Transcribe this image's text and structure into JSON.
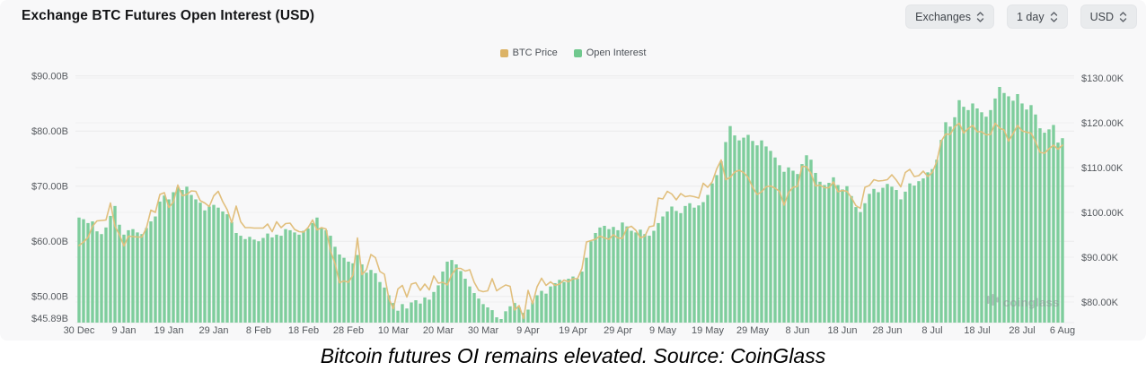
{
  "header": {
    "title": "Exchange BTC Futures Open Interest (USD)",
    "controls": [
      {
        "label": "Exchanges"
      },
      {
        "label": "1 day"
      },
      {
        "label": "USD"
      }
    ]
  },
  "legend": [
    {
      "label": "BTC Price",
      "color": "#dcb366"
    },
    {
      "label": "Open Interest",
      "color": "#70c88e"
    }
  ],
  "watermark": "coinglass",
  "caption": "Bitcoin futures OI remains elevated. Source: CoinGlass",
  "colors": {
    "bar": "#7ecd9c",
    "line": "#e1bf7d",
    "card_bg": "#f8f8f9",
    "axis_text": "#55595e",
    "grid_left": "#ebebec",
    "grid_right": "#f0f0f1"
  },
  "chart_data": {
    "type": "bar",
    "title": "Exchange BTC Futures Open Interest (USD)",
    "x_start": "30 Dec",
    "x_end": "6 Aug",
    "n_points": 220,
    "x_tick_labels": [
      {
        "label": "30 Dec",
        "day": 0
      },
      {
        "label": "9 Jan",
        "day": 10
      },
      {
        "label": "19 Jan",
        "day": 20
      },
      {
        "label": "29 Jan",
        "day": 30
      },
      {
        "label": "8 Feb",
        "day": 40
      },
      {
        "label": "18 Feb",
        "day": 50
      },
      {
        "label": "28 Feb",
        "day": 60
      },
      {
        "label": "10 Mar",
        "day": 70
      },
      {
        "label": "20 Mar",
        "day": 80
      },
      {
        "label": "30 Mar",
        "day": 90
      },
      {
        "label": "9 Apr",
        "day": 100
      },
      {
        "label": "19 Apr",
        "day": 110
      },
      {
        "label": "29 Apr",
        "day": 120
      },
      {
        "label": "9 May",
        "day": 130
      },
      {
        "label": "19 May",
        "day": 140
      },
      {
        "label": "29 May",
        "day": 150
      },
      {
        "label": "8 Jun",
        "day": 160
      },
      {
        "label": "18 Jun",
        "day": 170
      },
      {
        "label": "28 Jun",
        "day": 180
      },
      {
        "label": "8 Jul",
        "day": 190
      },
      {
        "label": "18 Jul",
        "day": 200
      },
      {
        "label": "28 Jul",
        "day": 210
      },
      {
        "label": "6 Aug",
        "day": 219
      }
    ],
    "left_axis": {
      "unit": "USD billions",
      "min": 45.89,
      "grid_values": [
        90,
        80,
        70,
        60,
        50
      ],
      "ticks": [
        {
          "label": "$90.00B",
          "value": 90
        },
        {
          "label": "$80.00B",
          "value": 80
        },
        {
          "label": "$70.00B",
          "value": 70
        },
        {
          "label": "$60.00B",
          "value": 60
        },
        {
          "label": "$50.00B",
          "value": 50
        },
        {
          "label": "$45.89B",
          "value": 45.89
        }
      ]
    },
    "right_axis": {
      "unit": "USD thousands",
      "ticks": [
        {
          "label": "$130.00K",
          "value": 130
        },
        {
          "label": "$120.00K",
          "value": 120
        },
        {
          "label": "$110.00K",
          "value": 110
        },
        {
          "label": "$100.00K",
          "value": 100
        },
        {
          "label": "$90.00K",
          "value": 90
        },
        {
          "label": "$80.00K",
          "value": 80
        }
      ]
    },
    "series": [
      {
        "name": "Open Interest",
        "type": "bar",
        "axis": "left",
        "color": "#7ecd9c",
        "values": [
          64.3,
          64.0,
          63.3,
          63.6,
          61.8,
          61.3,
          62.5,
          64.6,
          66.4,
          63.0,
          61.2,
          62.0,
          62.2,
          61.6,
          61.3,
          62.4,
          63.6,
          64.5,
          67.2,
          68.3,
          67.6,
          68.9,
          69.8,
          69.3,
          69.9,
          68.4,
          67.6,
          67.0,
          65.6,
          66.3,
          66.6,
          66.1,
          65.4,
          64.9,
          63.5,
          61.5,
          61.0,
          60.4,
          60.8,
          60.3,
          60.0,
          60.6,
          61.4,
          60.7,
          61.2,
          61.0,
          62.2,
          62.0,
          61.6,
          61.2,
          61.9,
          62.3,
          63.3,
          64.3,
          62.4,
          62.0,
          61.0,
          59.0,
          57.6,
          57.0,
          56.3,
          56.0,
          57.5,
          55.8,
          54.3,
          54.8,
          54.2,
          52.6,
          51.6,
          50.2,
          48.8,
          47.4,
          48.6,
          47.8,
          48.9,
          49.3,
          48.7,
          49.8,
          49.4,
          50.8,
          52.0,
          54.5,
          56.3,
          56.6,
          55.8,
          54.6,
          53.2,
          51.8,
          50.6,
          49.6,
          48.6,
          48.0,
          47.5,
          46.2,
          45.89,
          47.3,
          48.2,
          48.8,
          48.0,
          47.0,
          47.6,
          48.9,
          50.2,
          51.0,
          50.5,
          51.8,
          52.4,
          53.0,
          52.6,
          53.2,
          53.6,
          53.2,
          54.5,
          57.0,
          60.0,
          61.5,
          62.5,
          62.8,
          62.2,
          62.6,
          62.0,
          63.4,
          62.7,
          61.9,
          61.6,
          62.1,
          61.3,
          61.0,
          61.9,
          63.3,
          64.5,
          65.4,
          66.3,
          65.5,
          65.1,
          66.4,
          66.9,
          66.1,
          66.5,
          67.1,
          68.4,
          70.5,
          72.0,
          74.5,
          78.0,
          80.9,
          79.2,
          78.3,
          78.8,
          79.3,
          78.2,
          77.4,
          78.3,
          77.2,
          76.4,
          75.2,
          73.8,
          72.6,
          73.4,
          72.8,
          72.2,
          74.0,
          75.6,
          74.8,
          72.4,
          70.8,
          70.2,
          70.6,
          71.6,
          70.2,
          69.4,
          70.0,
          68.2,
          66.2,
          65.3,
          66.9,
          68.6,
          69.5,
          68.9,
          69.7,
          70.4,
          69.9,
          69.3,
          67.6,
          69.0,
          70.5,
          70.1,
          70.9,
          71.4,
          72.5,
          73.1,
          74.8,
          78.4,
          81.6,
          80.8,
          82.5,
          85.6,
          84.4,
          83.8,
          85.0,
          84.1,
          83.4,
          82.6,
          83.8,
          85.9,
          88.0,
          86.9,
          86.3,
          85.5,
          86.7,
          85.0,
          83.9,
          84.7,
          83.0,
          80.5,
          79.7,
          80.3,
          81.1,
          77.9,
          78.7
        ]
      },
      {
        "name": "BTC Price",
        "type": "line",
        "axis": "right",
        "color": "#e1bf7d",
        "values": [
          92.6,
          93.4,
          94.4,
          96.9,
          98.1,
          98.2,
          98.3,
          102.1,
          96.9,
          95.0,
          92.5,
          94.7,
          94.6,
          94.5,
          94.5,
          96.5,
          100.5,
          100.0,
          104.0,
          104.4,
          101.1,
          102.3,
          106.1,
          103.7,
          104.0,
          104.8,
          104.7,
          102.6,
          102.1,
          101.3,
          103.7,
          104.7,
          102.4,
          100.6,
          97.7,
          101.4,
          97.9,
          96.6,
          96.6,
          96.5,
          96.5,
          96.5,
          97.4,
          95.7,
          97.9,
          96.6,
          97.5,
          97.6,
          96.2,
          95.7,
          95.6,
          96.6,
          98.3,
          96.1,
          96.6,
          96.3,
          91.4,
          88.6,
          84.3,
          84.7,
          84.4,
          86.0,
          94.3,
          86.1,
          87.2,
          90.6,
          89.9,
          86.8,
          86.2,
          80.7,
          78.5,
          82.9,
          83.7,
          81.1,
          84.0,
          84.3,
          82.6,
          84.0,
          82.7,
          85.8,
          84.2,
          84.4,
          83.8,
          86.1,
          87.5,
          87.5,
          86.9,
          87.2,
          84.4,
          82.6,
          82.3,
          82.5,
          85.2,
          82.5,
          83.2,
          83.8,
          83.5,
          78.2,
          79.2,
          76.3,
          82.6,
          79.6,
          83.4,
          85.3,
          83.7,
          84.5,
          83.7,
          84.0,
          84.9,
          84.5,
          85.2,
          85.2,
          87.5,
          93.4,
          93.7,
          94.0,
          94.7,
          94.3,
          94.0,
          95.0,
          94.3,
          94.2,
          96.5,
          96.9,
          96.0,
          94.3,
          94.7,
          96.8,
          97.0,
          103.2,
          103.0,
          104.7,
          104.1,
          102.8,
          104.2,
          103.5,
          103.7,
          103.5,
          103.2,
          106.5,
          105.6,
          106.8,
          109.7,
          111.7,
          107.3,
          107.8,
          109.0,
          109.4,
          108.9,
          107.8,
          105.6,
          104.0,
          104.6,
          105.7,
          105.9,
          105.4,
          104.7,
          101.6,
          104.4,
          105.6,
          105.8,
          110.3,
          110.2,
          108.7,
          105.9,
          106.1,
          105.5,
          105.5,
          106.8,
          104.6,
          104.9,
          104.7,
          103.3,
          101.5,
          100.9,
          105.6,
          106.0,
          107.3,
          107.0,
          107.1,
          107.3,
          108.4,
          107.2,
          105.7,
          108.9,
          109.6,
          108.0,
          108.2,
          109.2,
          108.0,
          108.9,
          111.3,
          115.9,
          117.5,
          117.4,
          119.1,
          119.9,
          117.7,
          118.7,
          119.4,
          118.0,
          118.0,
          117.3,
          117.4,
          119.9,
          118.8,
          118.4,
          115.9,
          117.6,
          119.4,
          118.2,
          117.9,
          117.7,
          115.8,
          113.4,
          113.2,
          114.2,
          115.0,
          114.1,
          115.0
        ]
      }
    ]
  }
}
